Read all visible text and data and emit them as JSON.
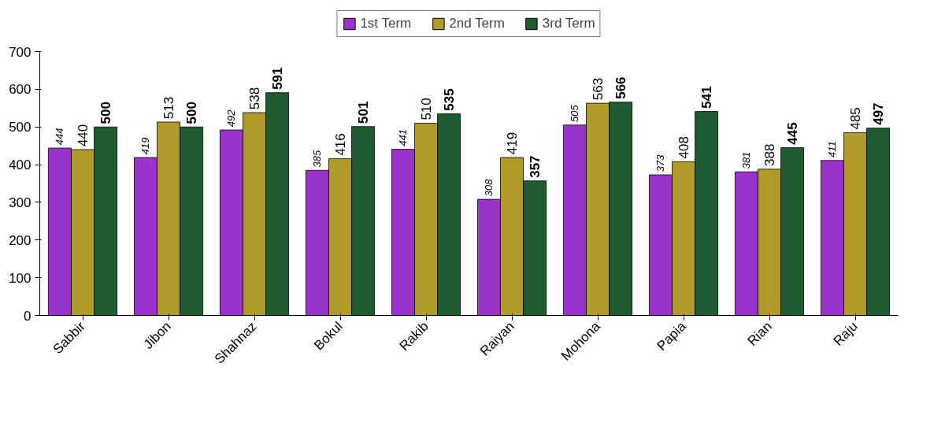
{
  "chart_data": {
    "type": "bar",
    "categories": [
      "Sabbir",
      "Jibon",
      "Shahnaz",
      "Bokul",
      "Rakib",
      "Raiyan",
      "Mohona",
      "Papia",
      "Rian",
      "Raju"
    ],
    "series": [
      {
        "name": "1st Term",
        "color": "#9933cc",
        "values": [
          444,
          419,
          492,
          385,
          441,
          308,
          505,
          373,
          381,
          411
        ]
      },
      {
        "name": "2nd Term",
        "color": "#b09a2a",
        "values": [
          440,
          513,
          538,
          416,
          510,
          419,
          563,
          408,
          388,
          485
        ]
      },
      {
        "name": "3rd Term",
        "color": "#1f5a30",
        "values": [
          500,
          500,
          591,
          501,
          535,
          357,
          566,
          541,
          445,
          497
        ]
      }
    ],
    "ylim": [
      0,
      700
    ],
    "yticks": [
      0,
      100,
      200,
      300,
      400,
      500,
      600,
      700
    ],
    "grid": false,
    "legend": "top",
    "data_labels": true
  }
}
